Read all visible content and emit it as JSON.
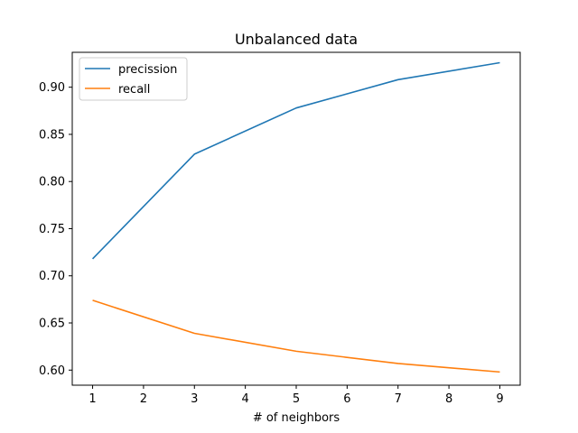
{
  "chart_data": {
    "type": "line",
    "title": "Unbalanced data",
    "xlabel": "# of neighbors",
    "ylabel": "",
    "x": [
      1,
      3,
      5,
      7,
      9
    ],
    "xlim": [
      0.6,
      9.4
    ],
    "ylim": [
      0.584,
      0.937
    ],
    "xticks": [
      1,
      2,
      3,
      4,
      5,
      6,
      7,
      8,
      9
    ],
    "yticks": [
      0.6,
      0.65,
      0.7,
      0.75,
      0.8,
      0.85,
      0.9
    ],
    "ytick_labels": [
      "0.60",
      "0.65",
      "0.70",
      "0.75",
      "0.80",
      "0.85",
      "0.90"
    ],
    "grid": false,
    "legend_position": "upper-left",
    "series": [
      {
        "name": "precission",
        "color": "#1f77b4",
        "values": [
          0.718,
          0.829,
          0.878,
          0.908,
          0.926
        ]
      },
      {
        "name": "recall",
        "color": "#ff7f0e",
        "values": [
          0.674,
          0.639,
          0.62,
          0.607,
          0.598
        ]
      }
    ]
  }
}
